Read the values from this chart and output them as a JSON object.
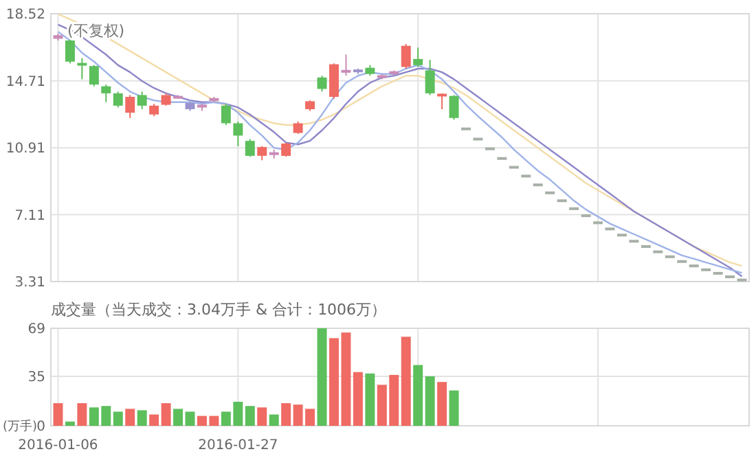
{
  "chart_data": [
    {
      "type": "candlestick",
      "categories": [
        null,
        null,
        null,
        null,
        null,
        null,
        null,
        null,
        null,
        null,
        null,
        null,
        null,
        null,
        null,
        null,
        null,
        null,
        null,
        null,
        null,
        null,
        null,
        null,
        null,
        null,
        null,
        null,
        null,
        null,
        null,
        null,
        null,
        null,
        null,
        null,
        null,
        null,
        null,
        null,
        null,
        null,
        null,
        null,
        null,
        null,
        null,
        null,
        null,
        null,
        null,
        null,
        null,
        null,
        null,
        null,
        null,
        null
      ],
      "tick_labels": "y",
      "ylim": [
        3.31,
        18.52
      ],
      "yticks": [
        3.31,
        7.11,
        10.91,
        14.71,
        18.52
      ],
      "grid": true,
      "annotations": [
        "(不复权)"
      ],
      "ohlc": [
        [
          17.1,
          17.4,
          17.0,
          17.3
        ],
        [
          17.0,
          17.1,
          15.7,
          15.8
        ],
        [
          15.7,
          16.0,
          14.8,
          15.6
        ],
        [
          15.55,
          15.6,
          14.4,
          14.5
        ],
        [
          14.4,
          14.5,
          13.5,
          14.0
        ],
        [
          14.0,
          14.1,
          13.2,
          13.3
        ],
        [
          12.9,
          13.9,
          12.6,
          13.8
        ],
        [
          13.9,
          14.1,
          13.1,
          13.3
        ],
        [
          12.8,
          13.4,
          12.7,
          13.3
        ],
        [
          13.35,
          14.0,
          13.3,
          13.9
        ],
        [
          13.75,
          13.9,
          13.7,
          13.8
        ],
        [
          13.45,
          13.5,
          13.0,
          13.1
        ],
        [
          13.25,
          13.4,
          13.0,
          13.3
        ],
        [
          13.6,
          13.8,
          13.5,
          13.7
        ],
        [
          13.3,
          13.4,
          12.2,
          12.3
        ],
        [
          12.3,
          12.4,
          11.0,
          11.6
        ],
        [
          11.3,
          11.4,
          10.4,
          10.45
        ],
        [
          10.45,
          11.0,
          10.2,
          10.95
        ],
        [
          10.55,
          10.8,
          10.3,
          10.6
        ],
        [
          10.45,
          11.2,
          10.4,
          11.15
        ],
        [
          11.75,
          12.4,
          11.7,
          12.3
        ],
        [
          13.1,
          13.6,
          13.0,
          13.55
        ],
        [
          14.9,
          15.0,
          14.1,
          14.25
        ],
        [
          13.8,
          15.7,
          13.7,
          15.65
        ],
        [
          15.2,
          16.2,
          15.0,
          15.3
        ],
        [
          15.3,
          15.4,
          15.1,
          15.25
        ],
        [
          15.45,
          15.6,
          15.0,
          15.1
        ],
        [
          14.9,
          15.1,
          14.8,
          15.0
        ],
        [
          15.15,
          15.3,
          15.0,
          15.2
        ],
        [
          15.5,
          16.8,
          15.4,
          16.7
        ],
        [
          15.95,
          16.6,
          15.5,
          15.6
        ],
        [
          15.3,
          15.9,
          13.9,
          14.0
        ],
        [
          13.85,
          14.0,
          13.1,
          13.95
        ],
        [
          13.85,
          13.9,
          12.5,
          12.6
        ],
        [
          11.98,
          11.98,
          11.98,
          11.98
        ],
        [
          11.4,
          11.4,
          11.4,
          11.4
        ],
        [
          10.85,
          10.85,
          10.85,
          10.85
        ],
        [
          10.3,
          10.3,
          10.3,
          10.3
        ],
        [
          9.8,
          9.8,
          9.8,
          9.8
        ],
        [
          9.3,
          9.3,
          9.3,
          9.3
        ],
        [
          8.8,
          8.8,
          8.8,
          8.8
        ],
        [
          8.35,
          8.35,
          8.35,
          8.35
        ],
        [
          7.9,
          7.9,
          7.9,
          7.9
        ],
        [
          7.45,
          7.45,
          7.45,
          7.45
        ],
        [
          7.05,
          7.05,
          7.05,
          7.05
        ],
        [
          6.65,
          6.65,
          6.65,
          6.65
        ],
        [
          6.3,
          6.3,
          6.3,
          6.3
        ],
        [
          5.95,
          5.95,
          5.95,
          5.95
        ],
        [
          5.6,
          5.6,
          5.6,
          5.6
        ],
        [
          5.3,
          5.3,
          5.3,
          5.3
        ],
        [
          5.0,
          5.0,
          5.0,
          5.0
        ],
        [
          4.72,
          4.72,
          4.72,
          4.72
        ],
        [
          4.45,
          4.45,
          4.45,
          4.45
        ],
        [
          4.2,
          4.2,
          4.2,
          4.2
        ],
        [
          3.98,
          3.98,
          3.98,
          3.98
        ],
        [
          3.78,
          3.78,
          3.78,
          3.78
        ],
        [
          3.58,
          3.58,
          3.58,
          3.58
        ],
        [
          3.4,
          3.4,
          3.4,
          3.4
        ]
      ],
      "colors": [
        "#c98bb8",
        "#5cbf5c",
        "#5cbf5c",
        "#5cbf5c",
        "#5cbf5c",
        "#5cbf5c",
        "#ef6b63",
        "#5cbf5c",
        "#ef6b63",
        "#ef6b63",
        "#c98bb8",
        "#9a93cf",
        "#c98bb8",
        "#c98bb8",
        "#5cbf5c",
        "#5cbf5c",
        "#5cbf5c",
        "#ef6b63",
        "#c98bb8",
        "#ef6b63",
        "#ef6b63",
        "#ef6b63",
        "#5cbf5c",
        "#ef6b63",
        "#c98bb8",
        "#9a93cf",
        "#5cbf5c",
        "#c98bb8",
        "#c98bb8",
        "#ef6b63",
        "#5cbf5c",
        "#5cbf5c",
        "#ef6b63",
        "#5cbf5c",
        "#a7b0a7",
        "#a7b0a7",
        "#a7b0a7",
        "#a7b0a7",
        "#a7b0a7",
        "#a7b0a7",
        "#a7b0a7",
        "#a7b0a7",
        "#a7b0a7",
        "#a7b0a7",
        "#a7b0a7",
        "#a7b0a7",
        "#a7b0a7",
        "#a7b0a7",
        "#a7b0a7",
        "#a7b0a7",
        "#a7b0a7",
        "#a7b0a7",
        "#a7b0a7",
        "#a7b0a7",
        "#a7b0a7",
        "#a7b0a7",
        "#a7b0a7",
        "#a7b0a7"
      ],
      "series": [
        {
          "type": "line",
          "color": "#f3dca8",
          "values": [
            18.5,
            18.2,
            17.9,
            17.6,
            17.2,
            16.8,
            16.4,
            16.0,
            15.6,
            15.2,
            14.8,
            14.4,
            14.0,
            13.6,
            13.3,
            13.0,
            12.7,
            12.5,
            12.3,
            12.2,
            12.2,
            12.3,
            12.5,
            12.8,
            13.2,
            13.6,
            14.0,
            14.4,
            14.7,
            15.0,
            15.0,
            14.8,
            14.6,
            14.3,
            13.9,
            13.4,
            12.9,
            12.4,
            11.9,
            11.4,
            10.9,
            10.4,
            9.9,
            9.4,
            8.9,
            8.5,
            8.1,
            7.7,
            7.3,
            6.9,
            6.5,
            6.1,
            5.7,
            5.3,
            5.0,
            4.7,
            4.4,
            4.2
          ]
        },
        {
          "type": "line",
          "color": "#8d86c9",
          "values": [
            17.9,
            17.6,
            17.2,
            16.7,
            16.2,
            15.6,
            15.2,
            14.7,
            14.3,
            14.0,
            13.8,
            13.6,
            13.5,
            13.5,
            13.4,
            13.2,
            12.8,
            12.3,
            11.8,
            11.2,
            11.1,
            11.3,
            11.9,
            12.6,
            13.4,
            14.1,
            14.6,
            14.9,
            15.0,
            15.2,
            15.4,
            15.4,
            15.2,
            14.8,
            14.3,
            13.8,
            13.3,
            12.8,
            12.3,
            11.8,
            11.3,
            10.8,
            10.3,
            9.8,
            9.3,
            8.8,
            8.3,
            7.8,
            7.3,
            6.9,
            6.5,
            6.1,
            5.7,
            5.3,
            4.9,
            4.5,
            4.1,
            3.6
          ]
        },
        {
          "type": "line",
          "color": "#9fb3e8",
          "values": [
            17.5,
            17.0,
            16.3,
            15.8,
            15.2,
            14.6,
            14.1,
            13.8,
            13.6,
            13.5,
            13.5,
            13.5,
            13.4,
            13.5,
            13.4,
            12.9,
            12.2,
            11.6,
            10.9,
            10.8,
            11.2,
            11.9,
            12.8,
            13.8,
            14.6,
            15.0,
            15.2,
            15.1,
            15.1,
            15.4,
            15.6,
            15.3,
            14.8,
            14.1,
            13.35,
            12.7,
            12.1,
            11.5,
            10.8,
            10.2,
            9.6,
            9.1,
            8.5,
            7.9,
            7.4,
            7.0,
            6.6,
            6.3,
            6.0,
            5.7,
            5.4,
            5.1,
            4.8,
            4.6,
            4.4,
            4.2,
            4.0,
            3.8
          ]
        }
      ]
    },
    {
      "type": "bar",
      "title": "成交量（当天成交：3.04万手 & 合计：1006万）",
      "ylabel": "(万手)",
      "categories": [
        "2016-01-06",
        null,
        null,
        null,
        null,
        null,
        null,
        null,
        null,
        null,
        null,
        null,
        null,
        null,
        null,
        "2016-01-27",
        null,
        null,
        null,
        null,
        null,
        null,
        null,
        null,
        null,
        null,
        null,
        null,
        null,
        null,
        null,
        null,
        null,
        null,
        null,
        null,
        null,
        null,
        null,
        null,
        null,
        null,
        null,
        null,
        null,
        null,
        null,
        null,
        null,
        null,
        null,
        null,
        null,
        null,
        null,
        null,
        null,
        null
      ],
      "ylim": [
        0,
        69
      ],
      "yticks": [
        0,
        35,
        69
      ],
      "grid": true,
      "values": [
        16,
        3,
        16,
        13,
        14,
        10,
        12,
        11,
        8,
        16,
        12,
        10,
        7,
        7,
        10,
        17,
        14,
        13,
        8,
        16,
        15,
        12,
        69,
        62,
        66,
        38,
        37,
        29,
        36,
        63,
        43,
        35,
        31,
        25,
        null,
        null,
        null,
        null,
        null,
        null,
        null,
        null,
        null,
        null,
        null,
        null,
        null,
        null,
        null,
        null,
        null,
        null,
        null,
        null,
        null,
        null,
        null,
        null
      ],
      "colors": [
        "#ef6b63",
        "#5cbf5c",
        "#ef6b63",
        "#5cbf5c",
        "#5cbf5c",
        "#5cbf5c",
        "#ef6b63",
        "#5cbf5c",
        "#ef6b63",
        "#ef6b63",
        "#5cbf5c",
        "#5cbf5c",
        "#ef6b63",
        "#ef6b63",
        "#5cbf5c",
        "#5cbf5c",
        "#5cbf5c",
        "#ef6b63",
        "#5cbf5c",
        "#ef6b63",
        "#ef6b63",
        "#ef6b63",
        "#5cbf5c",
        "#ef6b63",
        "#ef6b63",
        "#ef6b63",
        "#5cbf5c",
        "#ef6b63",
        "#ef6b63",
        "#ef6b63",
        "#5cbf5c",
        "#5cbf5c",
        "#ef6b63",
        "#5cbf5c",
        null,
        null,
        null,
        null,
        null,
        null,
        null,
        null,
        null,
        null,
        null,
        null,
        null,
        null,
        null,
        null,
        null,
        null,
        null,
        null,
        null,
        null,
        null,
        null
      ]
    }
  ]
}
